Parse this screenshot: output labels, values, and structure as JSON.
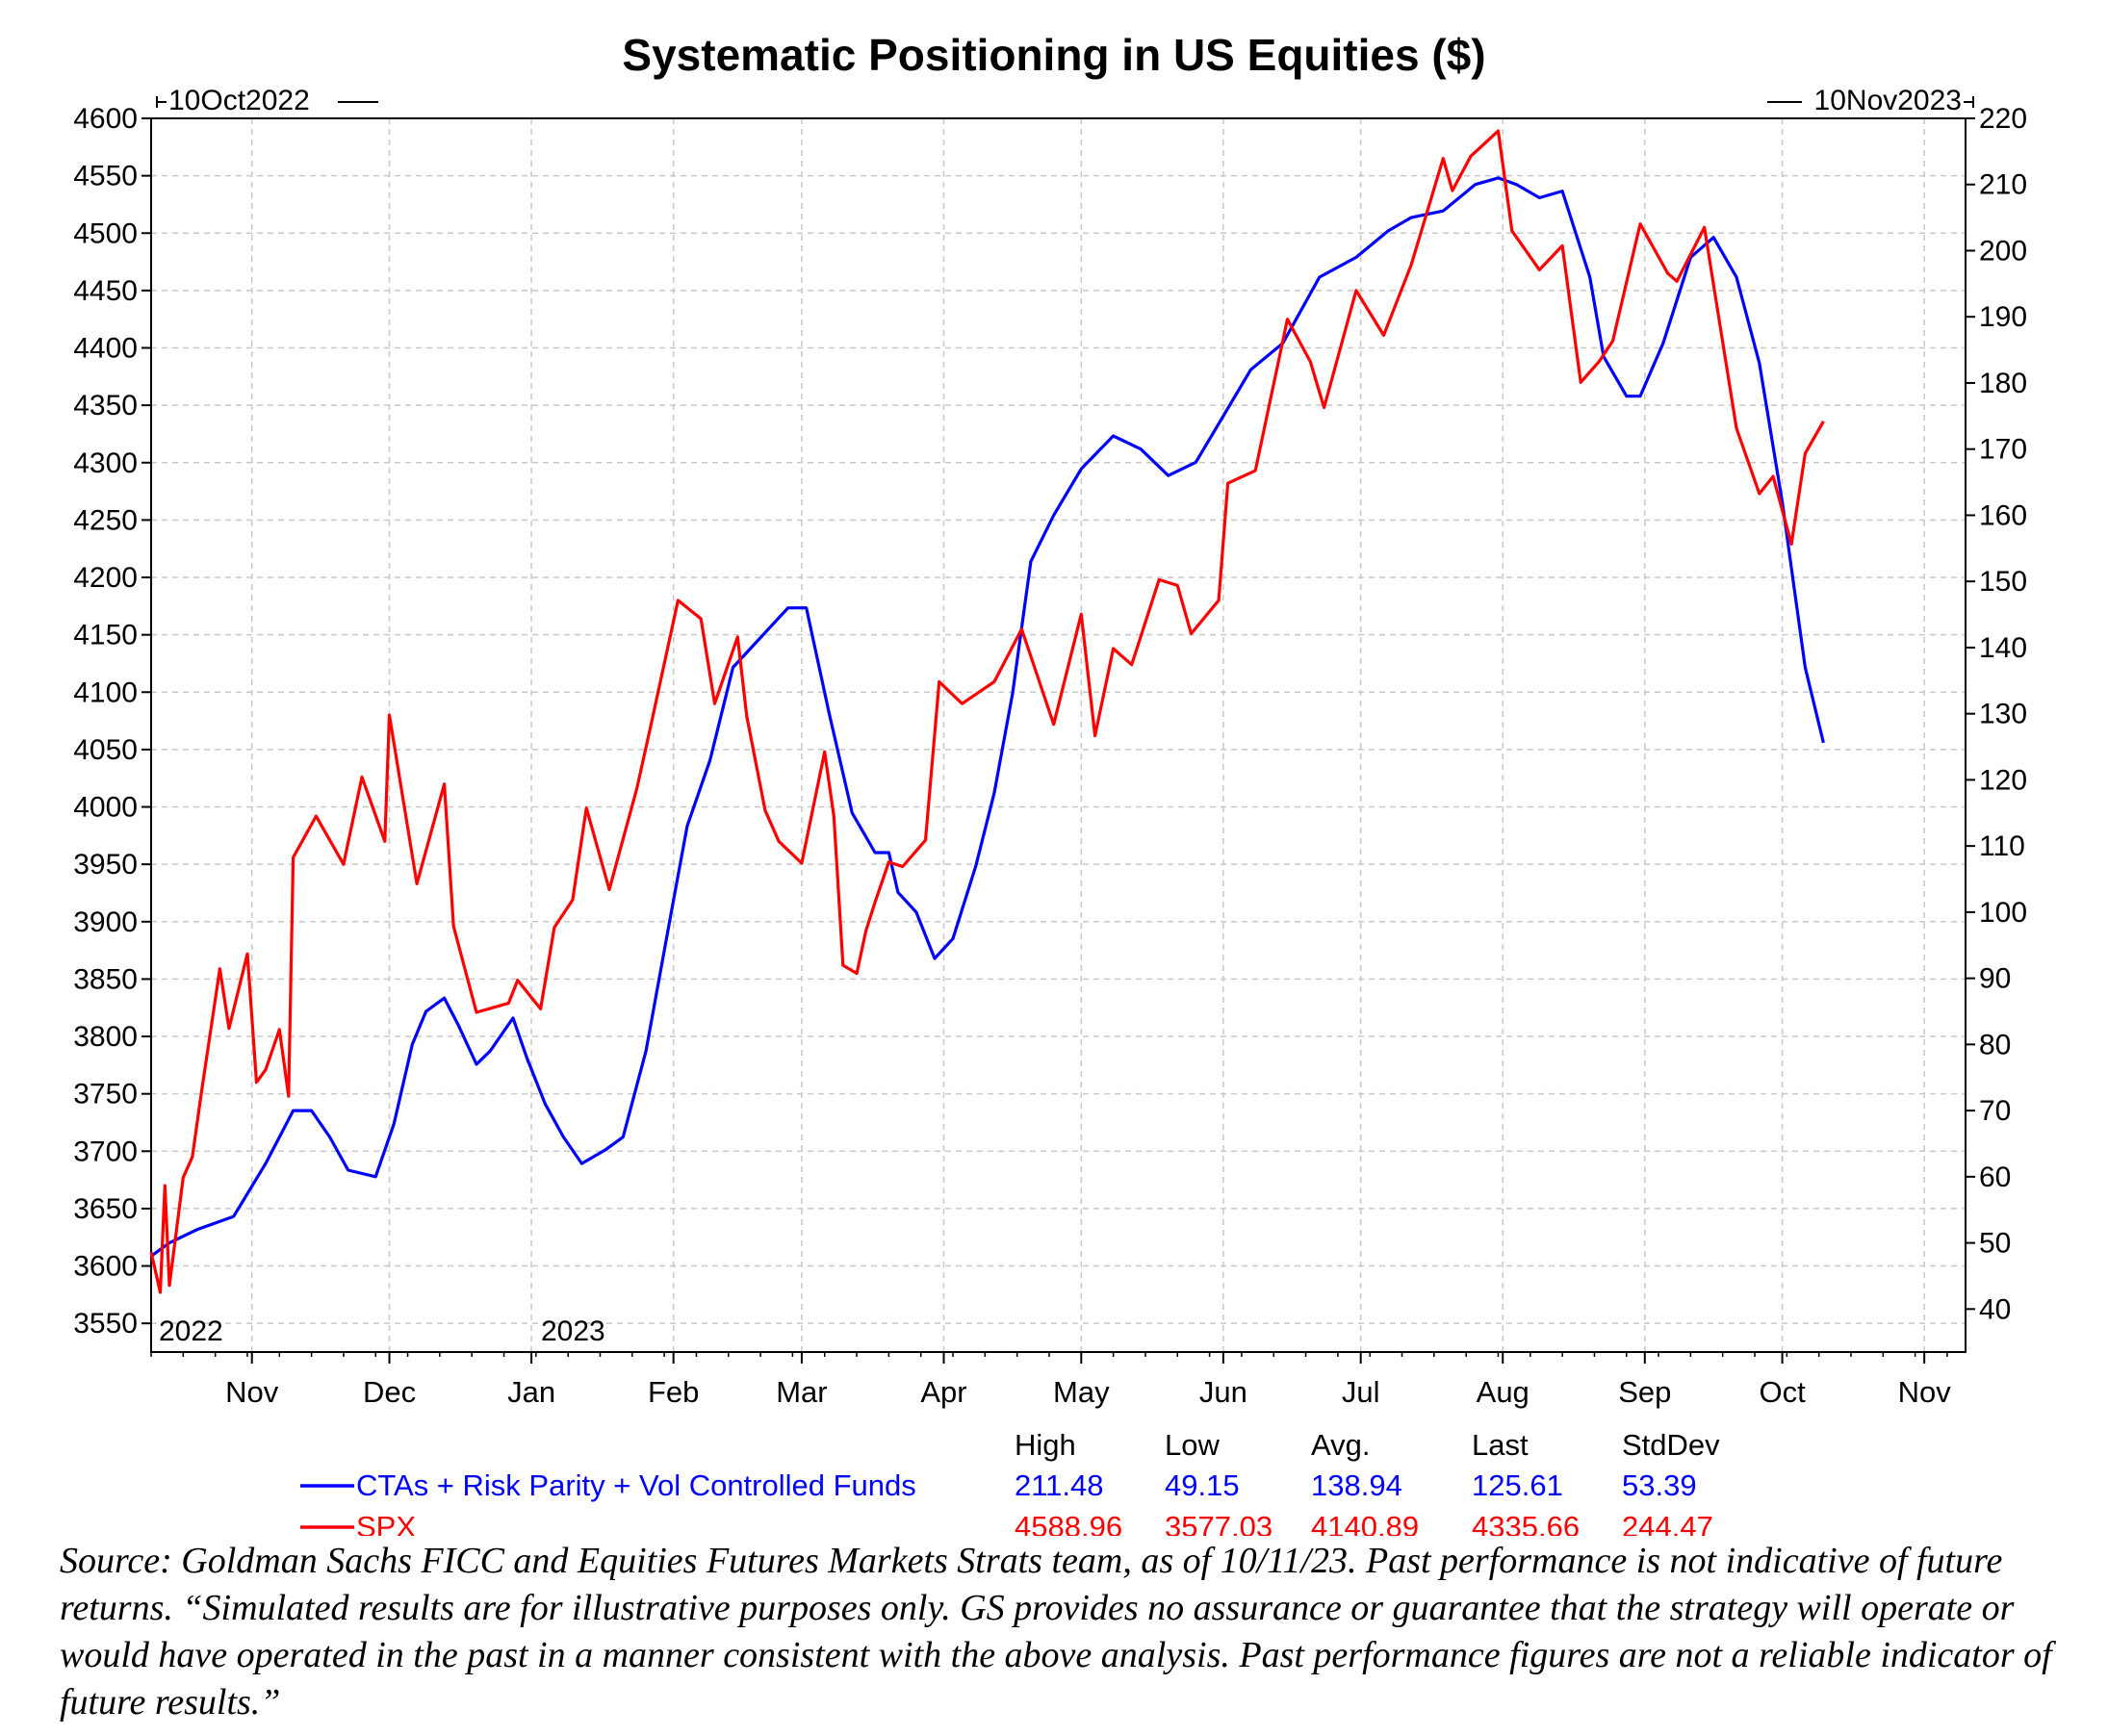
{
  "chart_data": {
    "type": "line",
    "title": "Systematic Positioning in US Equities ($)",
    "start_date_label": "10Oct2022",
    "end_date_label": "10Nov2023",
    "year_labels": [
      "2022",
      "2023"
    ],
    "x_axis": {
      "range": [
        "2022-10-10",
        "2023-11-10"
      ],
      "month_ticks": [
        "Nov",
        "Dec",
        "Jan",
        "Feb",
        "Mar",
        "Apr",
        "May",
        "Jun",
        "Jul",
        "Aug",
        "Sep",
        "Oct",
        "Nov"
      ]
    },
    "left_axis": {
      "series": "SPX",
      "ylim": [
        3525,
        4600
      ],
      "ticks": [
        3550,
        3600,
        3650,
        3700,
        3750,
        3800,
        3850,
        3900,
        3950,
        4000,
        4050,
        4100,
        4150,
        4200,
        4250,
        4300,
        4350,
        4400,
        4450,
        4500,
        4550,
        4600
      ]
    },
    "right_axis": {
      "series": "CTAs + Risk Parity + Vol Controlled Funds",
      "ylim": [
        33.5,
        220
      ],
      "ticks": [
        40,
        50,
        60,
        70,
        80,
        90,
        100,
        110,
        120,
        130,
        140,
        150,
        160,
        170,
        180,
        190,
        200,
        210,
        220
      ]
    },
    "grid": true,
    "stats_headers": [
      "High",
      "Low",
      "Avg.",
      "Last",
      "StdDev"
    ],
    "series": [
      {
        "name": "CTAs + Risk Parity + Vol Controlled Funds",
        "color": "#0000ff",
        "axis": "right",
        "stats": [
          "211.48",
          "49.15",
          "138.94",
          "125.61",
          "53.39"
        ],
        "dates": [
          "2022-10-10",
          "2022-10-14",
          "2022-10-20",
          "2022-10-28",
          "2022-11-04",
          "2022-11-10",
          "2022-11-14",
          "2022-11-18",
          "2022-11-22",
          "2022-11-28",
          "2022-12-02",
          "2022-12-06",
          "2022-12-09",
          "2022-12-13",
          "2022-12-16",
          "2022-12-20",
          "2022-12-23",
          "2022-12-28",
          "2022-12-31",
          "2023-01-04",
          "2023-01-08",
          "2023-01-12",
          "2023-01-17",
          "2023-01-21",
          "2023-01-26",
          "2023-01-31",
          "2023-02-04",
          "2023-02-09",
          "2023-02-14",
          "2023-02-18",
          "2023-02-22",
          "2023-02-26",
          "2023-03-02",
          "2023-03-07",
          "2023-03-12",
          "2023-03-17",
          "2023-03-20",
          "2023-03-22",
          "2023-03-26",
          "2023-03-30",
          "2023-04-03",
          "2023-04-08",
          "2023-04-12",
          "2023-04-16",
          "2023-04-20",
          "2023-04-25",
          "2023-05-01",
          "2023-05-08",
          "2023-05-14",
          "2023-05-20",
          "2023-05-26",
          "2023-06-01",
          "2023-06-07",
          "2023-06-14",
          "2023-06-22",
          "2023-06-30",
          "2023-07-07",
          "2023-07-12",
          "2023-07-19",
          "2023-07-26",
          "2023-07-31",
          "2023-08-04",
          "2023-08-09",
          "2023-08-14",
          "2023-08-20",
          "2023-08-23",
          "2023-08-28",
          "2023-08-31",
          "2023-09-05",
          "2023-09-11",
          "2023-09-16",
          "2023-09-21",
          "2023-09-26",
          "2023-10-01",
          "2023-10-06",
          "2023-10-10"
        ],
        "values": [
          48,
          50,
          52,
          54,
          62,
          70,
          70,
          66,
          61,
          60,
          68,
          80,
          85,
          87,
          83,
          77,
          79,
          84,
          78,
          71,
          66,
          62,
          64,
          66,
          79,
          98,
          113,
          123,
          137,
          140,
          143,
          146,
          146,
          130,
          115,
          109,
          109,
          103,
          100,
          93,
          96,
          107,
          118,
          133,
          153,
          160,
          167,
          172,
          170,
          166,
          168,
          175,
          182,
          186,
          196,
          199,
          203,
          205,
          206,
          210,
          211,
          210,
          208,
          209,
          196,
          184,
          178,
          178,
          186,
          199,
          202,
          196,
          183,
          162,
          137,
          125.6
        ]
      },
      {
        "name": "SPX",
        "color": "#ff0000",
        "axis": "left",
        "stats": [
          "4588.96",
          "3577.03",
          "4140.89",
          "4335.66",
          "244.47"
        ],
        "dates": [
          "2022-10-10",
          "2022-10-12",
          "2022-10-13",
          "2022-10-14",
          "2022-10-17",
          "2022-10-19",
          "2022-10-21",
          "2022-10-25",
          "2022-10-27",
          "2022-10-31",
          "2022-11-02",
          "2022-11-04",
          "2022-11-07",
          "2022-11-09",
          "2022-11-10",
          "2022-11-15",
          "2022-11-21",
          "2022-11-25",
          "2022-11-30",
          "2022-12-01",
          "2022-12-07",
          "2022-12-13",
          "2022-12-15",
          "2022-12-20",
          "2022-12-27",
          "2022-12-29",
          "2023-01-03",
          "2023-01-06",
          "2023-01-10",
          "2023-01-13",
          "2023-01-18",
          "2023-01-24",
          "2023-01-27",
          "2023-02-02",
          "2023-02-07",
          "2023-02-10",
          "2023-02-15",
          "2023-02-17",
          "2023-02-21",
          "2023-02-24",
          "2023-03-01",
          "2023-03-06",
          "2023-03-08",
          "2023-03-10",
          "2023-03-13",
          "2023-03-15",
          "2023-03-17",
          "2023-03-20",
          "2023-03-23",
          "2023-03-28",
          "2023-03-31",
          "2023-04-05",
          "2023-04-12",
          "2023-04-18",
          "2023-04-25",
          "2023-05-01",
          "2023-05-04",
          "2023-05-08",
          "2023-05-12",
          "2023-05-18",
          "2023-05-22",
          "2023-05-25",
          "2023-05-31",
          "2023-06-02",
          "2023-06-08",
          "2023-06-15",
          "2023-06-20",
          "2023-06-23",
          "2023-06-30",
          "2023-07-06",
          "2023-07-12",
          "2023-07-19",
          "2023-07-21",
          "2023-07-25",
          "2023-07-31",
          "2023-08-03",
          "2023-08-09",
          "2023-08-14",
          "2023-08-18",
          "2023-08-22",
          "2023-08-25",
          "2023-08-31",
          "2023-09-06",
          "2023-09-08",
          "2023-09-14",
          "2023-09-21",
          "2023-09-26",
          "2023-09-29",
          "2023-10-03",
          "2023-10-06",
          "2023-10-10"
        ],
        "values": [
          3612,
          3577,
          3670,
          3583,
          3677,
          3695,
          3752,
          3859,
          3807,
          3872,
          3760,
          3771,
          3806,
          3748,
          3956,
          3992,
          3950,
          4026,
          3970,
          4080,
          3933,
          4020,
          3896,
          3821,
          3829,
          3849,
          3824,
          3895,
          3919,
          3999,
          3928,
          4016,
          4070,
          4180,
          4164,
          4090,
          4148,
          4079,
          3997,
          3970,
          3951,
          4048,
          3992,
          3862,
          3855,
          3892,
          3917,
          3952,
          3948,
          3971,
          4109,
          4090,
          4109,
          4155,
          4072,
          4168,
          4062,
          4138,
          4124,
          4198,
          4193,
          4151,
          4180,
          4282,
          4293,
          4425,
          4388,
          4348,
          4450,
          4411,
          4472,
          4565,
          4537,
          4567,
          4589,
          4502,
          4468,
          4489,
          4370,
          4388,
          4406,
          4508,
          4465,
          4458,
          4505,
          4330,
          4273,
          4288,
          4229,
          4308,
          4336
        ]
      }
    ]
  },
  "caption": "Source: Goldman Sachs FICC and Equities Futures Markets Strats team, as of 10/11/23. Past performance is not indicative of future returns. “Simulated results are for illustrative purposes only. GS provides no assurance or guarantee that the strategy will operate or would have operated in the past in a manner consistent with the above analysis. Past performance figures are not a reliable indicator of future results.”"
}
